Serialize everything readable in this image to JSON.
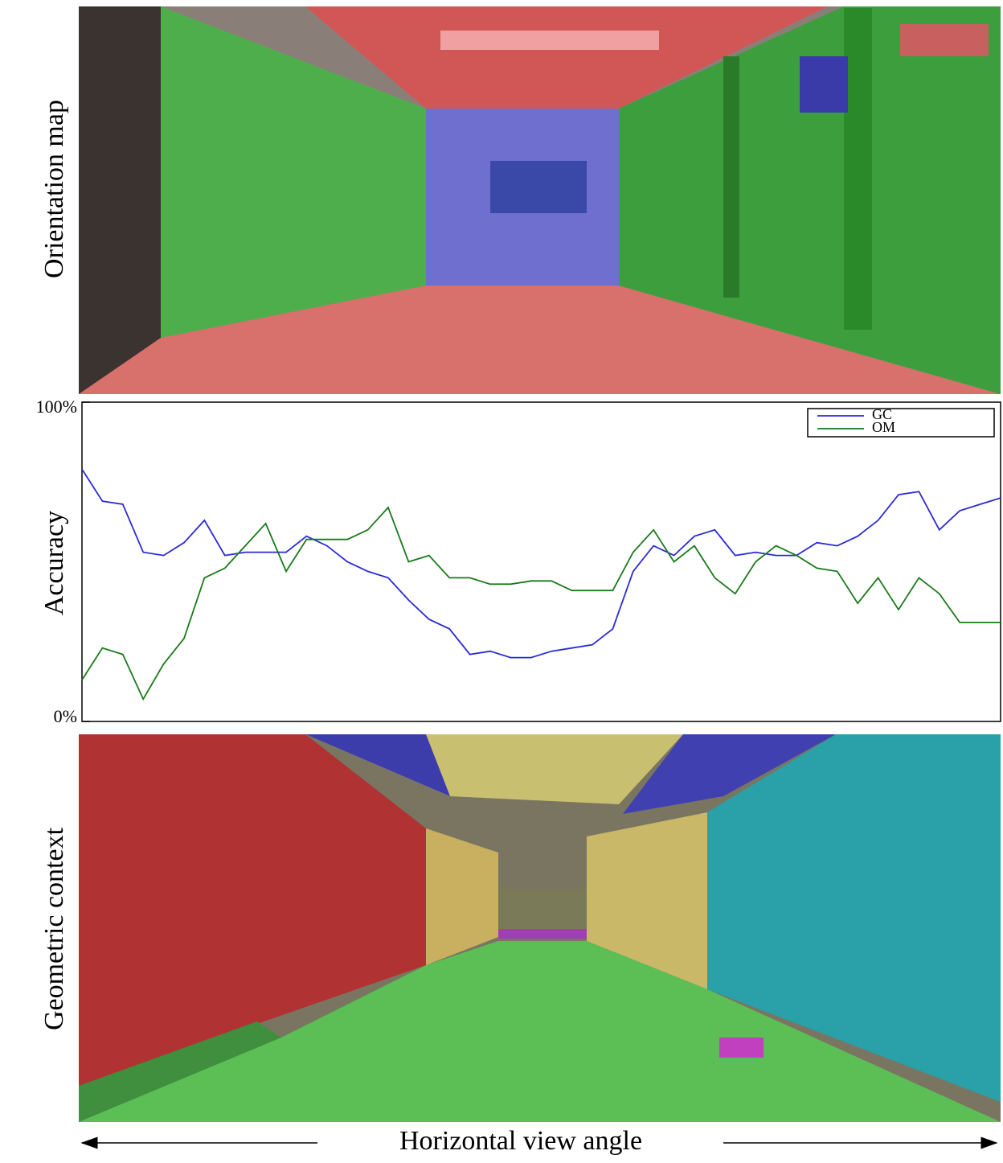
{
  "images": [
    {
      "label": "Orientation map"
    },
    {
      "label": "Geometric context"
    }
  ],
  "chart_data": {
    "type": "line",
    "ylabel": "Accuracy",
    "xlabel": "Horizontal view angle",
    "x": [
      0,
      0.2,
      0.4,
      0.6,
      0.8,
      1.0,
      1.2,
      1.4,
      1.6,
      1.8,
      2.0,
      2.2,
      2.4,
      2.6,
      2.8,
      3.0,
      3.2,
      3.4,
      3.6,
      3.8,
      4.0,
      4.2,
      4.4,
      4.6,
      4.8,
      5.0,
      5.2,
      5.4,
      5.6,
      5.8,
      6.0,
      6.2,
      6.4,
      6.6,
      6.8,
      7.0,
      7.2,
      7.4,
      7.6,
      7.8,
      8.0,
      8.2,
      8.4,
      8.6,
      8.8,
      9.0
    ],
    "series": [
      {
        "name": "GC",
        "color": "#2a2ad8",
        "values": [
          79,
          69,
          68,
          53,
          52,
          56,
          63,
          52,
          53,
          53,
          53,
          58,
          55,
          50,
          47,
          45,
          38,
          32,
          29,
          21,
          22,
          20,
          20,
          22,
          23,
          24,
          29,
          47,
          55,
          52,
          58,
          60,
          52,
          53,
          52,
          52,
          56,
          55,
          58,
          63,
          71,
          72,
          60,
          66,
          68,
          70
        ]
      },
      {
        "name": "OM",
        "color": "#1a7a1a",
        "values": [
          13,
          23,
          21,
          7,
          18,
          26,
          45,
          48,
          55,
          62,
          47,
          57,
          57,
          57,
          60,
          67,
          50,
          52,
          45,
          45,
          43,
          43,
          44,
          44,
          41,
          41,
          41,
          53,
          60,
          50,
          55,
          45,
          40,
          50,
          55,
          52,
          48,
          47,
          37,
          45,
          35,
          45,
          40,
          31,
          31,
          31
        ]
      }
    ],
    "xlim": [
      0,
      9
    ],
    "ylim": [
      0,
      100
    ],
    "yticks": [
      {
        "value": 0,
        "label": "0%"
      },
      {
        "value": 100,
        "label": "100%"
      }
    ],
    "legend": "upper right"
  }
}
